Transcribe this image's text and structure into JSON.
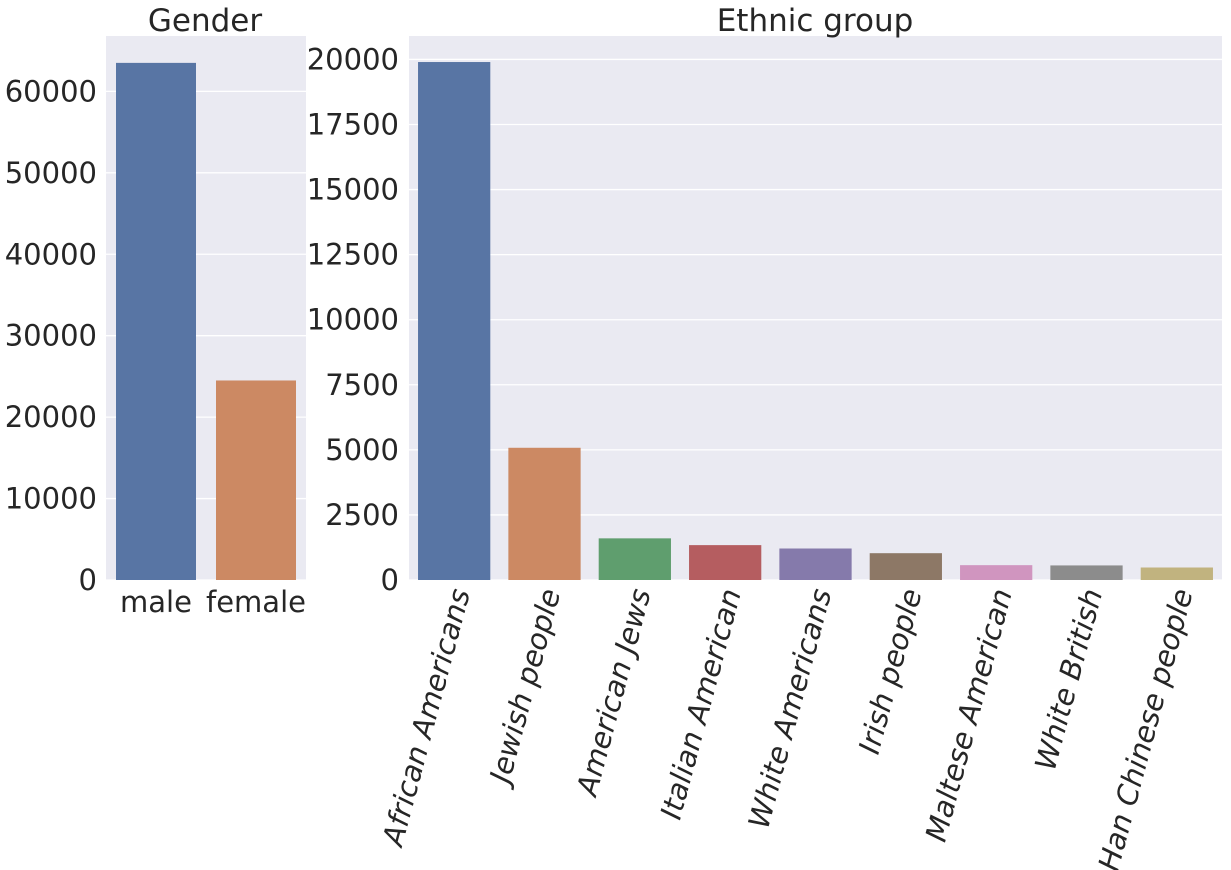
{
  "chart_data": [
    {
      "type": "bar",
      "title": "Gender",
      "xlabel": "",
      "ylabel": "",
      "categories": [
        "male",
        "female"
      ],
      "values": [
        63500,
        24500
      ],
      "colors": [
        "#5875a4",
        "#cc8963"
      ],
      "ylim": [
        0,
        66800
      ],
      "yticks": [
        0,
        10000,
        20000,
        30000,
        40000,
        50000,
        60000
      ],
      "ytick_labels": [
        "0",
        "10000",
        "20000",
        "30000",
        "40000",
        "50000",
        "60000"
      ],
      "grid": true,
      "style": "seaborn-darkgrid"
    },
    {
      "type": "bar",
      "title": "Ethnic group",
      "xlabel": "",
      "ylabel": "",
      "categories": [
        "African Americans",
        "Jewish people",
        "American Jews",
        "Italian American",
        "White Americans",
        "Irish people",
        "Maltese American",
        "White British",
        "Han Chinese people"
      ],
      "values": [
        19900,
        5080,
        1600,
        1340,
        1210,
        1030,
        570,
        560,
        480
      ],
      "colors": [
        "#5875a4",
        "#cc8963",
        "#5f9e6e",
        "#b55d60",
        "#857aab",
        "#8d7866",
        "#d095bf",
        "#8c8c8c",
        "#c1b37f"
      ],
      "ylim": [
        0,
        20900
      ],
      "yticks": [
        0,
        2500,
        5000,
        7500,
        10000,
        12500,
        15000,
        17500,
        20000
      ],
      "ytick_labels": [
        "0",
        "2500",
        "5000",
        "7500",
        "10000",
        "12500",
        "15000",
        "17500",
        "20000"
      ],
      "xtick_rotation": 75,
      "grid": true,
      "style": "seaborn-darkgrid"
    }
  ]
}
